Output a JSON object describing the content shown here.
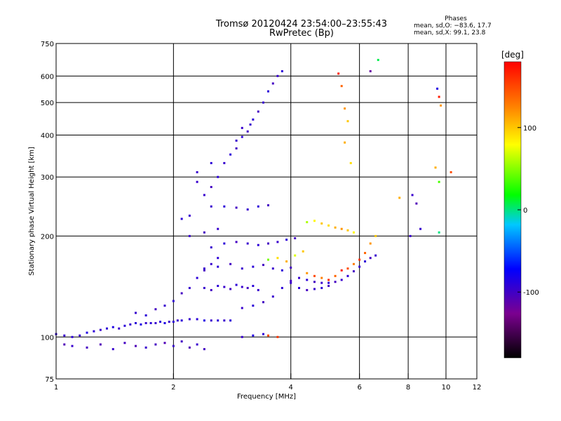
{
  "chart_data": {
    "type": "scatter",
    "title_line1": "Tromsø 20120424 23:54:00–23:55:43",
    "title_line2": "RwPretec (Bp)",
    "xlabel": "Frequency [MHz]",
    "ylabel": "Stationary phase Virtual Height [km]",
    "x_scale": "log",
    "y_scale": "log",
    "xlim": [
      1,
      12
    ],
    "ylim": [
      75,
      750
    ],
    "x_ticks": [
      1,
      2,
      4,
      6,
      8,
      10,
      12
    ],
    "y_ticks": [
      75,
      100,
      200,
      300,
      400,
      500,
      600,
      750
    ],
    "grid": true,
    "phases": {
      "heading": "Phases",
      "line0": "mean, sd,O: −83.6, 17.7",
      "line1": "mean, sd,X: 99.1, 23.8"
    },
    "colorbar": {
      "label": "[deg]",
      "range": [
        -180,
        180
      ],
      "ticks": [
        100,
        0,
        -100
      ],
      "colors": [
        "#000000",
        "#7b0090",
        "#0000ff",
        "#00c8ff",
        "#00ff00",
        "#ffff00",
        "#ff8000",
        "#ff0000"
      ]
    },
    "series": [
      {
        "points": [
          [
            1.0,
            102,
            -95
          ],
          [
            1.05,
            101,
            -100
          ],
          [
            1.1,
            100,
            -95
          ],
          [
            1.15,
            101,
            -100
          ],
          [
            1.2,
            103,
            -90
          ],
          [
            1.25,
            104,
            -95
          ],
          [
            1.3,
            105,
            -100
          ],
          [
            1.35,
            106,
            -95
          ],
          [
            1.4,
            107,
            -90
          ],
          [
            1.45,
            106,
            -100
          ],
          [
            1.5,
            108,
            -95
          ],
          [
            1.55,
            109,
            -100
          ],
          [
            1.6,
            110,
            -95
          ],
          [
            1.65,
            109,
            -90
          ],
          [
            1.7,
            110,
            -100
          ],
          [
            1.75,
            110,
            -95
          ],
          [
            1.8,
            110,
            -100
          ],
          [
            1.85,
            111,
            -95
          ],
          [
            1.9,
            110,
            -90
          ],
          [
            1.95,
            111,
            -100
          ],
          [
            2.0,
            111,
            -95
          ],
          [
            2.05,
            112,
            -100
          ],
          [
            2.1,
            112,
            -95
          ],
          [
            2.2,
            113,
            -100
          ],
          [
            2.3,
            113,
            -95
          ],
          [
            2.4,
            112,
            -90
          ],
          [
            2.5,
            112,
            -100
          ],
          [
            2.6,
            112,
            -95
          ],
          [
            2.7,
            112,
            -100
          ],
          [
            2.8,
            112,
            -95
          ]
        ]
      },
      {
        "points": [
          [
            1.05,
            95,
            -110
          ],
          [
            1.1,
            94,
            -100
          ],
          [
            1.2,
            93,
            -105
          ],
          [
            1.3,
            95,
            -110
          ],
          [
            1.4,
            92,
            -100
          ],
          [
            1.5,
            96,
            -105
          ],
          [
            1.6,
            94,
            -110
          ],
          [
            1.7,
            93,
            -100
          ],
          [
            1.8,
            95,
            -105
          ],
          [
            1.9,
            96,
            -110
          ],
          [
            2.0,
            94,
            -100
          ],
          [
            2.1,
            97,
            -105
          ],
          [
            2.2,
            93,
            -110
          ],
          [
            2.3,
            95,
            -100
          ],
          [
            2.4,
            92,
            -105
          ]
        ]
      },
      {
        "points": [
          [
            1.6,
            118,
            -100
          ],
          [
            1.7,
            116,
            -95
          ],
          [
            1.8,
            121,
            -105
          ],
          [
            1.9,
            124,
            -100
          ],
          [
            2.0,
            128,
            -95
          ],
          [
            2.1,
            135,
            -105
          ],
          [
            2.2,
            140,
            -100
          ],
          [
            2.3,
            150,
            -95
          ],
          [
            2.4,
            158,
            -105
          ],
          [
            2.5,
            165,
            -100
          ],
          [
            2.6,
            172,
            -95
          ]
        ]
      },
      {
        "points": [
          [
            2.4,
            140,
            -100
          ],
          [
            2.5,
            138,
            -105
          ],
          [
            2.6,
            142,
            -95
          ],
          [
            2.7,
            141,
            -100
          ],
          [
            2.8,
            139,
            -105
          ],
          [
            2.9,
            143,
            -95
          ],
          [
            3.0,
            141,
            -100
          ],
          [
            3.1,
            140,
            -105
          ],
          [
            3.2,
            142,
            -95
          ],
          [
            3.3,
            138,
            -100
          ]
        ]
      },
      {
        "points": [
          [
            2.4,
            160,
            -100
          ],
          [
            2.6,
            162,
            -95
          ],
          [
            2.8,
            165,
            -105
          ],
          [
            3.0,
            160,
            -100
          ],
          [
            3.2,
            162,
            -95
          ],
          [
            3.4,
            164,
            -105
          ],
          [
            3.6,
            160,
            -100
          ],
          [
            3.8,
            158,
            -95
          ],
          [
            4.0,
            161,
            -105
          ]
        ]
      },
      {
        "points": [
          [
            2.5,
            185,
            -100
          ],
          [
            2.7,
            190,
            -95
          ],
          [
            2.9,
            192,
            -105
          ],
          [
            3.1,
            190,
            -100
          ],
          [
            3.3,
            188,
            -95
          ],
          [
            3.5,
            190,
            -105
          ],
          [
            3.7,
            192,
            -100
          ],
          [
            3.9,
            195,
            -95
          ],
          [
            4.1,
            197,
            -105
          ]
        ]
      },
      {
        "points": [
          [
            3.0,
            122,
            -100
          ],
          [
            3.2,
            124,
            -95
          ],
          [
            3.4,
            127,
            -105
          ],
          [
            3.6,
            132,
            -100
          ],
          [
            3.8,
            140,
            -95
          ],
          [
            4.0,
            147,
            -105
          ],
          [
            4.2,
            150,
            -100
          ],
          [
            4.4,
            148,
            -95
          ],
          [
            4.6,
            146,
            -105
          ],
          [
            4.8,
            145,
            -100
          ],
          [
            5.0,
            145,
            -95
          ],
          [
            5.2,
            146,
            -105
          ],
          [
            5.4,
            148,
            -100
          ],
          [
            5.6,
            152,
            -95
          ],
          [
            5.8,
            157,
            -105
          ],
          [
            6.0,
            162,
            -100
          ],
          [
            6.2,
            168,
            -95
          ],
          [
            6.4,
            172,
            -105
          ],
          [
            6.6,
            175,
            -100
          ]
        ]
      },
      {
        "points": [
          [
            4.0,
            145,
            -100
          ],
          [
            4.2,
            140,
            -95
          ],
          [
            4.4,
            138,
            -105
          ],
          [
            4.6,
            139,
            -100
          ],
          [
            4.8,
            140,
            -95
          ],
          [
            5.0,
            142,
            -105
          ]
        ]
      },
      {
        "points": [
          [
            2.5,
            245,
            -100
          ],
          [
            2.7,
            245,
            -95
          ],
          [
            2.9,
            243,
            -105
          ],
          [
            3.1,
            240,
            -100
          ],
          [
            3.3,
            245,
            -95
          ],
          [
            3.5,
            247,
            -105
          ]
        ]
      },
      {
        "points": [
          [
            2.9,
            385,
            -100
          ],
          [
            3.0,
            395,
            -95
          ],
          [
            3.1,
            410,
            -105
          ],
          [
            3.15,
            430,
            -100
          ],
          [
            3.2,
            445,
            -95
          ],
          [
            3.3,
            470,
            -105
          ],
          [
            3.4,
            500,
            -100
          ],
          [
            3.5,
            540,
            -95
          ],
          [
            3.6,
            570,
            -105
          ],
          [
            3.7,
            600,
            -100
          ],
          [
            3.8,
            620,
            -95
          ]
        ]
      },
      {
        "points": [
          [
            2.7,
            330,
            -100
          ],
          [
            2.8,
            350,
            -95
          ],
          [
            2.9,
            365,
            -105
          ],
          [
            3.0,
            420,
            -100
          ],
          [
            2.6,
            300,
            -95
          ],
          [
            2.5,
            280,
            -105
          ],
          [
            2.4,
            265,
            -100
          ]
        ]
      },
      {
        "points": [
          [
            4.4,
            220,
            60
          ],
          [
            4.6,
            222,
            80
          ],
          [
            4.8,
            218,
            100
          ],
          [
            5.0,
            215,
            90
          ],
          [
            5.2,
            212,
            110
          ],
          [
            5.4,
            210,
            120
          ],
          [
            5.6,
            208,
            100
          ],
          [
            5.8,
            205,
            80
          ]
        ]
      },
      {
        "points": [
          [
            4.4,
            155,
            120
          ],
          [
            4.6,
            152,
            150
          ],
          [
            4.8,
            150,
            130
          ],
          [
            5.0,
            148,
            160
          ],
          [
            5.2,
            152,
            140
          ],
          [
            5.4,
            158,
            170
          ],
          [
            5.6,
            160,
            150
          ],
          [
            5.8,
            165,
            130
          ],
          [
            6.0,
            170,
            160
          ],
          [
            6.2,
            178,
            140
          ],
          [
            6.4,
            190,
            120
          ],
          [
            6.6,
            200,
            100
          ]
        ]
      },
      {
        "points": [
          [
            3.5,
            170,
            50
          ],
          [
            3.7,
            172,
            90
          ],
          [
            3.9,
            168,
            110
          ],
          [
            4.1,
            175,
            70
          ],
          [
            4.3,
            180,
            100
          ]
        ]
      },
      {
        "points": [
          [
            3.5,
            101,
            150
          ],
          [
            3.7,
            100,
            160
          ],
          [
            3.2,
            101,
            -90
          ],
          [
            3.0,
            100,
            -100
          ],
          [
            3.4,
            102,
            -95
          ]
        ]
      },
      {
        "points": [
          [
            5.3,
            610,
            170
          ],
          [
            5.4,
            560,
            140
          ],
          [
            5.5,
            480,
            120
          ],
          [
            5.6,
            440,
            100
          ],
          [
            5.5,
            380,
            110
          ],
          [
            5.7,
            330,
            90
          ],
          [
            6.4,
            620,
            -120
          ],
          [
            6.7,
            670,
            10
          ]
        ]
      },
      {
        "points": [
          [
            9.5,
            550,
            -90
          ],
          [
            9.6,
            520,
            170
          ],
          [
            9.7,
            490,
            120
          ],
          [
            9.4,
            320,
            110
          ],
          [
            9.6,
            290,
            40
          ],
          [
            9.6,
            205,
            0
          ],
          [
            10.3,
            310,
            150
          ],
          [
            8.2,
            265,
            -100
          ],
          [
            8.4,
            250,
            -110
          ],
          [
            8.6,
            210,
            -100
          ],
          [
            7.6,
            260,
            110
          ],
          [
            8.1,
            200,
            -100
          ]
        ]
      },
      {
        "points": [
          [
            2.3,
            290,
            -100
          ],
          [
            2.2,
            230,
            -100
          ],
          [
            2.1,
            225,
            -95
          ],
          [
            2.3,
            310,
            -100
          ],
          [
            2.5,
            330,
            -95
          ],
          [
            2.2,
            200,
            -100
          ],
          [
            2.4,
            205,
            -105
          ],
          [
            2.6,
            210,
            -100
          ]
        ]
      }
    ]
  }
}
